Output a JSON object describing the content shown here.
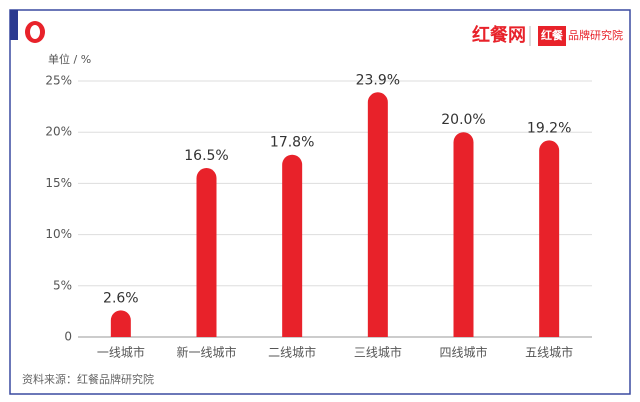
{
  "header": {
    "brand": "红餐网",
    "badge": "红餐",
    "badge_text": "品牌研究院"
  },
  "chart_data": {
    "type": "bar",
    "unit_label": "单位 / %",
    "source": "资料来源：红餐品牌研究院",
    "categories": [
      "一线城市",
      "新一线城市",
      "二线城市",
      "三线城市",
      "四线城市",
      "五线城市"
    ],
    "values": [
      2.6,
      16.5,
      17.8,
      23.9,
      20.0,
      19.2
    ],
    "value_labels": [
      "2.6%",
      "16.5%",
      "17.8%",
      "23.9%",
      "20.0%",
      "19.2%"
    ],
    "color": "#e8222a",
    "ylim": [
      0,
      25
    ],
    "yticks": [
      0,
      {
        "value": 5,
        "label": "5%"
      },
      {
        "value": 10,
        "label": "10%"
      },
      {
        "value": 15,
        "label": "15%"
      },
      {
        "value": 20,
        "label": "20%"
      },
      {
        "value": 25,
        "label": "25%"
      }
    ],
    "grid": true
  }
}
